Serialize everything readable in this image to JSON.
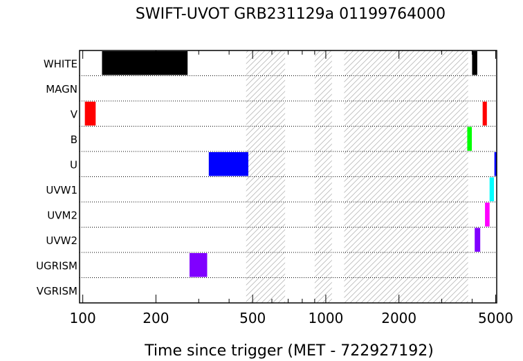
{
  "chart_data": {
    "type": "timeline",
    "title": "SWIFT-UVOT GRB231129a 01199764000",
    "xlabel": "Time since trigger (MET - 722927192)",
    "x_scale": "log",
    "xlim": [
      97,
      5050
    ],
    "x_ticks": [
      {
        "value": 100,
        "label": "100"
      },
      {
        "value": 200,
        "label": "200"
      },
      {
        "value": 500,
        "label": "500"
      },
      {
        "value": 1000,
        "label": "1000"
      },
      {
        "value": 2000,
        "label": "2000"
      },
      {
        "value": 5000,
        "label": "5000"
      }
    ],
    "rows": [
      "WHITE",
      "MAGN",
      "V",
      "B",
      "U",
      "UVW1",
      "UVM2",
      "UVW2",
      "UGRISM",
      "VGRISM"
    ],
    "grid": "dotted-row-separators",
    "hatched_intervals": [
      {
        "start": 470,
        "end": 680
      },
      {
        "start": 900,
        "end": 1060
      },
      {
        "start": 1190,
        "end": 3850
      }
    ],
    "exposures": [
      {
        "row": "WHITE",
        "start": 120,
        "end": 270,
        "color": "#000000"
      },
      {
        "row": "WHITE",
        "start": 4000,
        "end": 4200,
        "color": "#000000"
      },
      {
        "row": "V",
        "start": 102,
        "end": 113,
        "color": "#ff0000"
      },
      {
        "row": "V",
        "start": 4420,
        "end": 4600,
        "color": "#ff0000"
      },
      {
        "row": "B",
        "start": 3820,
        "end": 3990,
        "color": "#00ff00"
      },
      {
        "row": "U",
        "start": 330,
        "end": 480,
        "color": "#0000ff"
      },
      {
        "row": "U",
        "start": 4940,
        "end": 5050,
        "color": "#0000ff"
      },
      {
        "row": "UVW1",
        "start": 4720,
        "end": 4920,
        "color": "#00ffff"
      },
      {
        "row": "UVM2",
        "start": 4520,
        "end": 4720,
        "color": "#ff00ff"
      },
      {
        "row": "UVW2",
        "start": 4100,
        "end": 4320,
        "color": "#8000ff"
      },
      {
        "row": "UGRISM",
        "start": 275,
        "end": 325,
        "color": "#8000ff"
      }
    ]
  }
}
